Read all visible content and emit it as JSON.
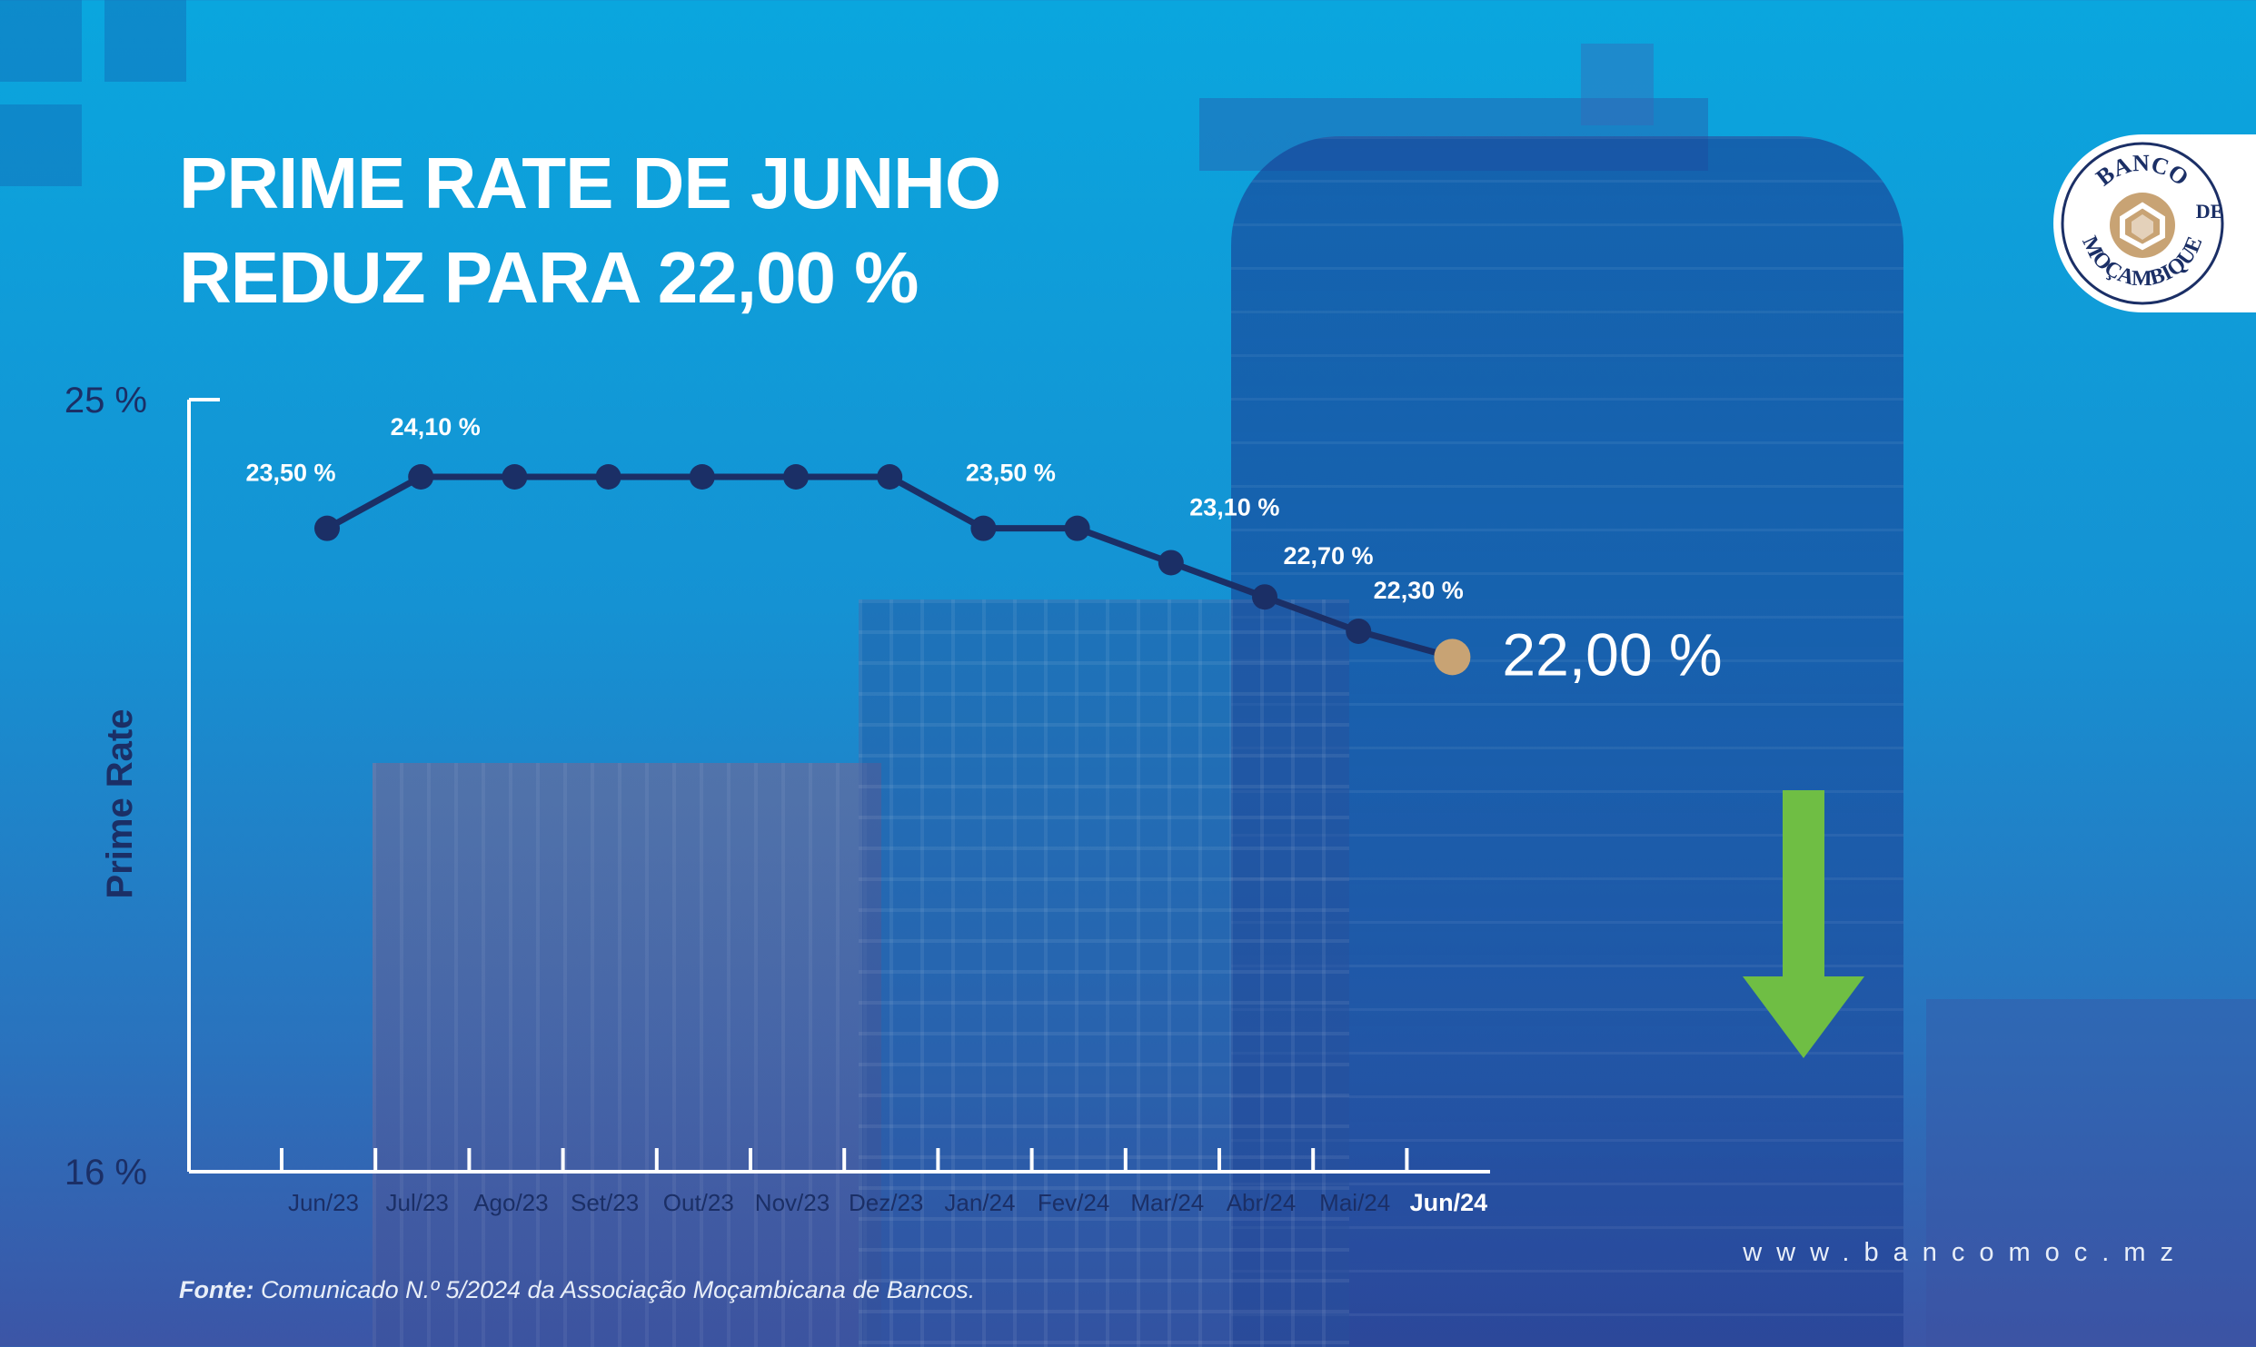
{
  "title_lines": [
    "PRIME RATE DE JUNHO",
    "REDUZ PARA 22,00 %"
  ],
  "logo": {
    "text_top": "BANCO",
    "text_side_left": "·",
    "text_side_right": "DE",
    "text_bottom": "MOÇAMBIQUE",
    "icon": "bank-emblem-icon"
  },
  "chart_data": {
    "type": "line",
    "ylabel": "Prime Rate",
    "ylim": [
      16,
      25
    ],
    "ytick_labels": [
      "25 %",
      "16 %"
    ],
    "categories": [
      "Jun/23",
      "Jul/23",
      "Ago/23",
      "Set/23",
      "Out/23",
      "Nov/23",
      "Dez/23",
      "Jan/24",
      "Fev/24",
      "Mar/24",
      "Abr/24",
      "Mai/24",
      "Jun/24"
    ],
    "values": [
      23.5,
      24.1,
      24.1,
      24.1,
      24.1,
      24.1,
      24.1,
      23.5,
      23.5,
      23.1,
      22.7,
      22.3,
      22.0
    ],
    "data_labels": [
      {
        "index": 0,
        "text": "23,50 %"
      },
      {
        "index": 1,
        "text": "24,10 %"
      },
      {
        "index": 7,
        "text": "23,50 %"
      },
      {
        "index": 9,
        "text": "23,10 %"
      },
      {
        "index": 10,
        "text": "22,70 %"
      },
      {
        "index": 11,
        "text": "22,30 %"
      }
    ],
    "highlight": {
      "index": 12,
      "text": "22,00 %"
    },
    "colors": {
      "line": "#1b2f66",
      "highlight_point": "#c8a374",
      "axis": "#ffffff",
      "down_arrow": "#6fbe44"
    },
    "grid": false
  },
  "footer": {
    "url": "www.bancomoc.mz",
    "source_label": "Fonte:",
    "source_text": "Comunicado N.º 5/2024 da Associação Moçambicana de Bancos."
  }
}
